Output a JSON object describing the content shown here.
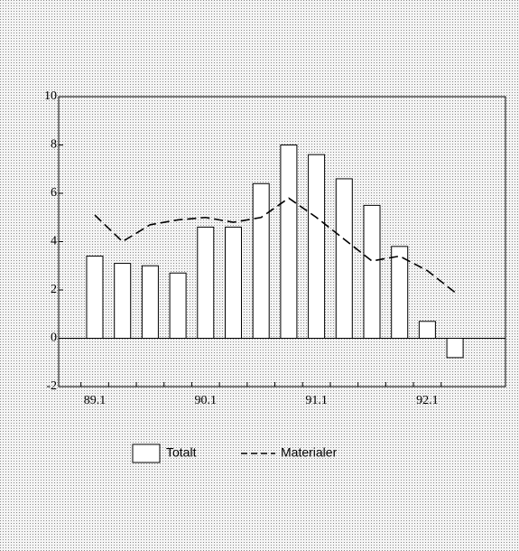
{
  "chart_data": {
    "type": "bar",
    "categories": [
      "89.1",
      null,
      null,
      null,
      "90.1",
      null,
      null,
      null,
      "91.1",
      null,
      null,
      null,
      "92.1",
      null
    ],
    "series": [
      {
        "name": "Totalt",
        "type": "bar",
        "color": "#ffffff",
        "values": [
          3.4,
          3.1,
          3.0,
          2.7,
          4.6,
          4.6,
          6.4,
          8.0,
          7.6,
          6.6,
          5.5,
          3.8,
          0.7,
          -0.8
        ]
      },
      {
        "name": "Materialer",
        "type": "line",
        "color": "#000000",
        "dashed": true,
        "values": [
          5.1,
          4.0,
          4.7,
          4.9,
          5.0,
          4.8,
          5.0,
          5.8,
          5.0,
          4.1,
          3.2,
          3.4,
          2.8,
          1.9
        ]
      }
    ],
    "ylim": [
      -2,
      10
    ],
    "yticks": [
      -2,
      0,
      2,
      4,
      6,
      8,
      10
    ],
    "grid": false
  }
}
